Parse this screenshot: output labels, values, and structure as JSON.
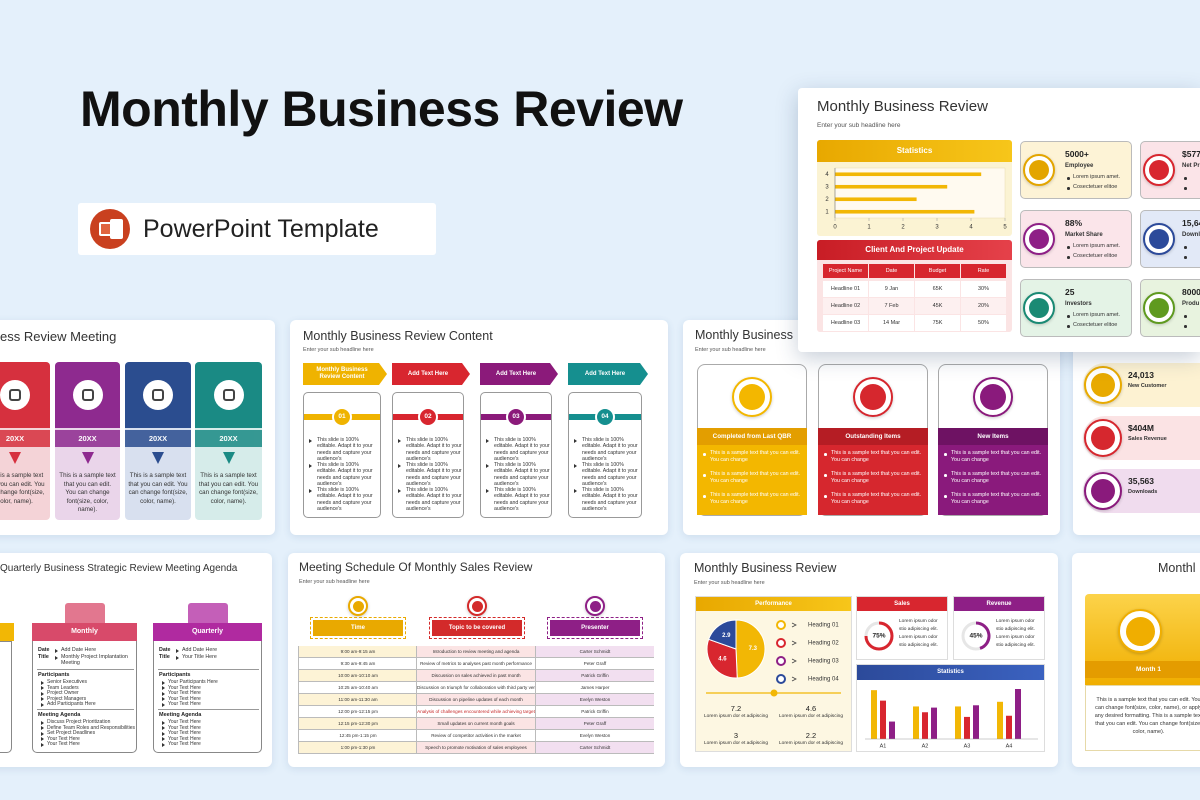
{
  "header": {
    "title": "Monthly Business Review",
    "badge": "PowerPoint Template"
  },
  "featured": {
    "title": "Monthly Business Review",
    "subtitle": "Enter your sub headline here",
    "table": {
      "title": "Client And Project Update",
      "columns": [
        "Project Name",
        "Date",
        "Budget",
        "Rate"
      ],
      "rows": [
        [
          "Headline 01",
          "9 Jan",
          "65K",
          "30%"
        ],
        [
          "Headline 02",
          "7 Feb",
          "45K",
          "20%"
        ],
        [
          "Headline 03",
          "14 Mar",
          "75K",
          "50%"
        ]
      ]
    },
    "kpis": [
      {
        "value": "5000+",
        "label": "Employee",
        "bullets": [
          "Lorem ipsum amet.",
          "Cosectetuer elitoe"
        ]
      },
      {
        "value": "88%",
        "label": "Market Share",
        "bullets": [
          "Lorem ipsum amet.",
          "Cosectetuer elitoe"
        ]
      },
      {
        "value": "25",
        "label": "Investors",
        "bullets": [
          "Lorem ipsum amet.",
          "Cosectetuer elitoe"
        ]
      }
    ],
    "kpis_right": [
      {
        "value": "$577",
        "label": "Net Pr"
      },
      {
        "value": "15,64",
        "label": "Downl"
      },
      {
        "value": "8000",
        "label": "Produ"
      }
    ]
  },
  "chart_data": [
    {
      "type": "bar",
      "orientation": "horizontal",
      "title": "Statistics",
      "categories": [
        "1",
        "2",
        "3",
        "4"
      ],
      "values": [
        4.1,
        2.4,
        3.3,
        4.3
      ],
      "color": "#f2b705",
      "xlim": [
        0,
        5
      ],
      "xticks": [
        0,
        1,
        2,
        3,
        4,
        5
      ]
    },
    {
      "type": "pie",
      "values": [
        7.3,
        4.6,
        2.9
      ],
      "colors": [
        "#f2b705",
        "#d8262f",
        "#2c4a9a"
      ]
    },
    {
      "type": "bar",
      "title": "Statistics",
      "categories": [
        "A1",
        "A2",
        "A3",
        "A4"
      ],
      "series": [
        {
          "color": "#f2b705",
          "values": [
            4.2,
            2.8,
            2.8,
            3.2
          ]
        },
        {
          "color": "#d8262f",
          "values": [
            3.3,
            2.3,
            1.9,
            2.0
          ]
        },
        {
          "color": "#8e1f86",
          "values": [
            1.5,
            2.7,
            2.9,
            4.3
          ]
        }
      ]
    }
  ],
  "slides": {
    "a": {
      "title": "ess Review Meeting",
      "columns": [
        {
          "label": "20XX",
          "text": "This is a sample text that you can edit. You can change font(size, color, name)."
        },
        {
          "label": "20XX",
          "text": "This is a sample text that you can edit. You can change font(size, color, name)."
        },
        {
          "label": "20XX",
          "text": "This is a sample text that you can edit. You can change font(size, color, name)."
        },
        {
          "label": "20XX",
          "text": "This is a sample text that you can edit. You can change font(size, color, name)."
        }
      ]
    },
    "b": {
      "title": "Monthly Business Review Content",
      "subtitle": "Enter your sub headline here",
      "columns": [
        {
          "head": "Monthly Business Review Content",
          "number": "01",
          "bullets": [
            "This slide is 100% editable. Adapt it to your needs and capture your audience's",
            "This slide is 100% editable. Adapt it to your needs and capture your audience's",
            "This slide is 100% editable. Adapt it to your needs and capture your audience's"
          ]
        },
        {
          "head": "Add Text Here",
          "number": "02",
          "bullets": [
            "This slide is 100% editable. Adapt it to your needs and capture your audience's",
            "This slide is 100% editable. Adapt it to your needs and capture your audience's",
            "This slide is 100% editable. Adapt it to your needs and capture your audience's"
          ]
        },
        {
          "head": "Add Text Here",
          "number": "03",
          "bullets": [
            "This slide is 100% editable. Adapt it to your needs and capture your audience's",
            "This slide is 100% editable. Adapt it to your needs and capture your audience's",
            "This slide is 100% editable. Adapt it to your needs and capture your audience's"
          ]
        },
        {
          "head": "Add Text Here",
          "number": "04",
          "bullets": [
            "This slide is 100% editable. Adapt it to your needs and capture your audience's",
            "This slide is 100% editable. Adapt it to your needs and capture your audience's",
            "This slide is 100% editable. Adapt it to your needs and capture your audience's"
          ]
        }
      ]
    },
    "c": {
      "title": "Monthly Business",
      "subtitle": "Enter your sub headline here",
      "columns": [
        {
          "head": "Completed from Last QBR",
          "bullets": [
            "This is a sample text that you can edit. You can change",
            "This is a sample text that you can edit. You can change",
            "This is a sample text that you can edit. You can change"
          ]
        },
        {
          "head": "Outstanding Items",
          "bullets": [
            "This is a sample text that you can edit. You can change",
            "This is a sample text that you can edit. You can change",
            "This is a sample text that you can edit. You can change"
          ]
        },
        {
          "head": "New Items",
          "bullets": [
            "This is a sample text that you can edit. You can change",
            "This is a sample text that you can edit. You can change",
            "This is a sample text that you can edit. You can change"
          ]
        }
      ]
    },
    "d": {
      "stats": [
        {
          "value": "24,013",
          "label": "New Customer"
        },
        {
          "value": "$404M",
          "label": "Sales Revenue"
        },
        {
          "value": "35,563",
          "label": "Downloads"
        }
      ]
    },
    "e": {
      "title": "Quarterly Business Strategic Review Meeting Agenda",
      "columns": [
        {
          "head": "Monthly",
          "date_label": "Date",
          "date": "Add Date Here",
          "title_label": "Title",
          "title": "Monthly Project Implantation Meeting",
          "participants_label": "Participants",
          "participants": [
            "Senior Executives",
            "Team Leaders",
            "Project Owner",
            "Project Managers",
            "Add Participants Here"
          ],
          "agenda_label": "Meeting Agenda",
          "agenda": [
            "Discuss Project Prioritization",
            "Define Team Roles and Responsibilities",
            "Set Project Deadlines",
            "Your Text Here",
            "Your Text Here"
          ]
        },
        {
          "head": "Quarterly",
          "date_label": "Date",
          "date": "Add Date Here",
          "title_label": "Title",
          "title": "Your Title Here",
          "participants_label": "Participants",
          "participants": [
            "Your Participants Here",
            "Your Text Here",
            "Your Text Here",
            "Your Text Here",
            "Your Text Here"
          ],
          "agenda_label": "Meeting Agenda",
          "agenda": [
            "Your Text Here",
            "Your Text Here",
            "Your Text Here",
            "Your Text Here",
            "Your Text Here"
          ]
        }
      ]
    },
    "f": {
      "title": "Meeting Schedule Of Monthly Sales Review",
      "subtitle": "Enter your sub headline here",
      "headers": [
        "Time",
        "Topic to be covered",
        "Presenter"
      ],
      "rows": [
        [
          "9:00 am-9:15 am",
          "Introduction to review meeting and agenda",
          "Carter Schmidt"
        ],
        [
          "9:30 am-9:45 am",
          "Review of metrics to analyses past month performance",
          "Peter Graff"
        ],
        [
          "10:00 am-10:10 am",
          "Discussion on sales achieved in past month",
          "Patrick Griffin"
        ],
        [
          "10:25 am-10:40 am",
          "Discussion on triumph for collaboration with third party vendor",
          "James Harper"
        ],
        [
          "11:00 am-11:30 am",
          "Discussion on pipeline updates of each month",
          "Evelyn Weston"
        ],
        [
          "12:00 pm-12:15 pm",
          "Analysis of challenges encountered while achieving target",
          "Patrick Griffin"
        ],
        [
          "12:15 pm-12:30 pm",
          "Small updates on current month goals",
          "Peter Graff"
        ],
        [
          "12:45 pm-1:15 pm",
          "Review of competitor activities in the market",
          "Evelyn Weston"
        ],
        [
          "1:00 pm-1:30 pm",
          "Speech to promote motivation of sales employees",
          "Carter Schmidt"
        ]
      ]
    },
    "g": {
      "title": "Monthly Business Review",
      "subtitle": "Enter your sub headline here",
      "performance": "Performance",
      "headings": [
        "Heading 01",
        "Heading 02",
        "Heading 03",
        "Heading 04"
      ],
      "numbers": [
        {
          "value": "7.2",
          "text": "Lorem ipsum dor et adipiscing"
        },
        {
          "value": "4.6",
          "text": "Lorem ipsum dor et adipiscing"
        },
        {
          "value": "3",
          "text": "Lorem ipsum dor et adipiscing"
        },
        {
          "value": "2.2",
          "text": "Lorem ipsum dor et adipiscing"
        }
      ],
      "gauges": [
        {
          "title": "Sales",
          "value": 75,
          "value_label": "75%",
          "text": [
            "Lorem ipsum odor",
            "stio adipiscing elit.",
            "Lorem ipsum odor",
            "stio adipiscing elit."
          ]
        },
        {
          "title": "Revenue",
          "value": 45,
          "value_label": "45%",
          "text": [
            "Lorem ipsum odor",
            "stio adipiscing elit.",
            "Lorem ipsum odor",
            "stio adipiscing elit."
          ]
        }
      ]
    },
    "h": {
      "title": "Monthl",
      "label": "Month 1",
      "text": "This is a sample text that you can edit. You can change font(size, color, name), or apply any desired formatting. This is a sample text that you can edit. You can change font(size, color, name)."
    }
  }
}
